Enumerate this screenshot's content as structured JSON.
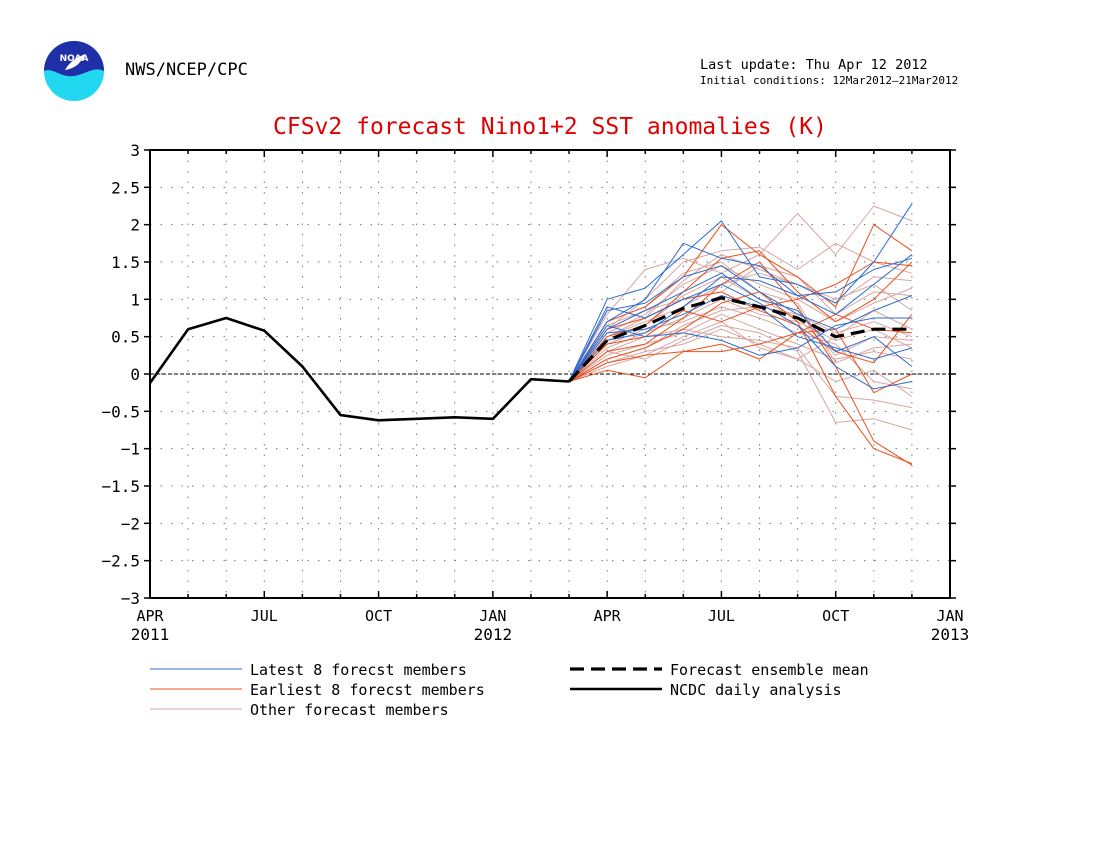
{
  "header": {
    "logo_text": "NOAA",
    "agency": "NWS/NCEP/CPC",
    "last_update": "Last update: Thu Apr 12 2012",
    "initial_conditions": "Initial conditions: 12Mar2012—21Mar2012"
  },
  "colors": {
    "title": "#e00000",
    "latest": "#2b6cd0",
    "earliest": "#e8501c",
    "other": "#d9a5a0",
    "mean": "#000000",
    "analysis": "#000000"
  },
  "chart_data": {
    "type": "line",
    "title": "CFSv2 forecast Nino1+2 SST anomalies (K)",
    "xlabel": "",
    "ylabel": "",
    "ylim": [
      -3,
      3
    ],
    "yticks": [
      3,
      2.5,
      2,
      1.5,
      1,
      0.5,
      0,
      -0.5,
      -1,
      -1.5,
      -2,
      -2.5,
      -3
    ],
    "ytick_labels": [
      "3",
      "2.5",
      "2",
      "1.5",
      "1",
      "0.5",
      "0",
      "−0.5",
      "−1",
      "−1.5",
      "−2",
      "−2.5",
      "−3"
    ],
    "xlim": [
      0,
      21
    ],
    "xticks": [
      {
        "x": 0,
        "label": "APR",
        "year": "2011"
      },
      {
        "x": 3,
        "label": "JUL",
        "year": ""
      },
      {
        "x": 6,
        "label": "OCT",
        "year": ""
      },
      {
        "x": 9,
        "label": "JAN",
        "year": "2012"
      },
      {
        "x": 12,
        "label": "APR",
        "year": ""
      },
      {
        "x": 15,
        "label": "JUL",
        "year": ""
      },
      {
        "x": 18,
        "label": "OCT",
        "year": ""
      },
      {
        "x": 21,
        "label": "JAN",
        "year": "2013"
      }
    ],
    "grid": true,
    "zero_line": true,
    "series": [
      {
        "name": "NCDC daily analysis",
        "kind": "analysis",
        "x": [
          0,
          1,
          2,
          3,
          4,
          5,
          6,
          7,
          8,
          9,
          10,
          11
        ],
        "values": [
          -0.12,
          0.6,
          0.75,
          0.58,
          0.1,
          -0.55,
          -0.62,
          -0.6,
          -0.58,
          -0.6,
          -0.07,
          -0.1
        ]
      },
      {
        "name": "Forecast ensemble mean",
        "kind": "mean",
        "x": [
          11,
          12,
          13,
          14,
          15,
          16,
          17,
          18,
          19,
          20
        ],
        "values": [
          -0.1,
          0.45,
          0.65,
          0.88,
          1.02,
          0.9,
          0.75,
          0.5,
          0.6,
          0.6
        ]
      },
      {
        "name": "Latest 8 forecst members",
        "kind": "latest",
        "x": [
          11,
          12,
          13,
          14,
          15,
          16,
          17,
          18,
          19,
          20
        ],
        "values": [
          -0.1,
          1.0,
          1.15,
          1.6,
          2.05,
          1.3,
          1.2,
          0.95,
          1.5,
          2.28
        ]
      },
      {
        "kind": "latest",
        "x": [
          11,
          12,
          13,
          14,
          15,
          16,
          17,
          18,
          19,
          20
        ],
        "values": [
          -0.1,
          0.85,
          0.95,
          1.3,
          1.45,
          1.1,
          0.8,
          0.6,
          0.85,
          1.05
        ]
      },
      {
        "kind": "latest",
        "x": [
          11,
          12,
          13,
          14,
          15,
          16,
          17,
          18,
          19,
          20
        ],
        "values": [
          -0.1,
          0.7,
          1.0,
          1.75,
          1.55,
          1.45,
          1.05,
          0.8,
          1.2,
          1.6
        ]
      },
      {
        "kind": "latest",
        "x": [
          11,
          12,
          13,
          14,
          15,
          16,
          17,
          18,
          19,
          20
        ],
        "values": [
          -0.1,
          0.6,
          0.85,
          1.1,
          1.35,
          1.0,
          0.85,
          0.3,
          0.5,
          0.1
        ]
      },
      {
        "kind": "latest",
        "x": [
          11,
          12,
          13,
          14,
          15,
          16,
          17,
          18,
          19,
          20
        ],
        "values": [
          -0.1,
          0.9,
          0.75,
          1.0,
          1.2,
          0.95,
          0.65,
          0.1,
          -0.2,
          -0.1
        ]
      },
      {
        "kind": "latest",
        "x": [
          11,
          12,
          13,
          14,
          15,
          16,
          17,
          18,
          19,
          20
        ],
        "values": [
          -0.1,
          0.55,
          0.6,
          0.8,
          1.05,
          0.9,
          0.5,
          0.35,
          0.2,
          0.35
        ]
      },
      {
        "kind": "latest",
        "x": [
          11,
          12,
          13,
          14,
          15,
          16,
          17,
          18,
          19,
          20
        ],
        "values": [
          -0.1,
          0.65,
          0.5,
          0.55,
          0.45,
          0.25,
          0.35,
          0.65,
          0.75,
          0.75
        ]
      },
      {
        "kind": "latest",
        "x": [
          11,
          12,
          13,
          14,
          15,
          16,
          17,
          18,
          19,
          20
        ],
        "values": [
          -0.1,
          0.45,
          0.55,
          0.9,
          1.3,
          1.25,
          1.05,
          1.1,
          1.4,
          1.55
        ]
      },
      {
        "name": "Earliest 8 forecst members",
        "kind": "earliest",
        "x": [
          11,
          12,
          13,
          14,
          15,
          16,
          17,
          18,
          19,
          20
        ],
        "values": [
          -0.1,
          0.7,
          0.9,
          1.3,
          2.0,
          1.6,
          1.3,
          0.9,
          2.0,
          1.65
        ]
      },
      {
        "kind": "earliest",
        "x": [
          11,
          12,
          13,
          14,
          15,
          16,
          17,
          18,
          19,
          20
        ],
        "values": [
          -0.1,
          0.5,
          0.65,
          1.1,
          1.55,
          1.65,
          1.1,
          0.7,
          1.0,
          1.5
        ]
      },
      {
        "kind": "earliest",
        "x": [
          11,
          12,
          13,
          14,
          15,
          16,
          17,
          18,
          19,
          20
        ],
        "values": [
          -0.1,
          0.3,
          0.4,
          0.75,
          1.2,
          1.5,
          0.9,
          0.1,
          -0.9,
          -1.22
        ]
      },
      {
        "kind": "earliest",
        "x": [
          11,
          12,
          13,
          14,
          15,
          16,
          17,
          18,
          19,
          20
        ],
        "values": [
          -0.1,
          0.2,
          0.35,
          0.6,
          0.95,
          1.1,
          0.7,
          -0.3,
          -1.0,
          -1.2
        ]
      },
      {
        "kind": "earliest",
        "x": [
          11,
          12,
          13,
          14,
          15,
          16,
          17,
          18,
          19,
          20
        ],
        "values": [
          -0.1,
          0.15,
          0.25,
          0.3,
          0.3,
          0.4,
          0.55,
          0.6,
          -0.25,
          0.0
        ]
      },
      {
        "kind": "earliest",
        "x": [
          11,
          12,
          13,
          14,
          15,
          16,
          17,
          18,
          19,
          20
        ],
        "values": [
          -0.1,
          0.4,
          0.5,
          0.85,
          0.7,
          0.9,
          1.0,
          1.2,
          1.5,
          1.45
        ]
      },
      {
        "kind": "earliest",
        "x": [
          11,
          12,
          13,
          14,
          15,
          16,
          17,
          18,
          19,
          20
        ],
        "values": [
          -0.1,
          0.05,
          -0.05,
          0.3,
          0.4,
          0.2,
          0.55,
          0.8,
          0.6,
          0.55
        ]
      },
      {
        "kind": "earliest",
        "x": [
          11,
          12,
          13,
          14,
          15,
          16,
          17,
          18,
          19,
          20
        ],
        "values": [
          -0.1,
          0.6,
          0.75,
          1.0,
          1.1,
          0.85,
          0.65,
          0.3,
          0.15,
          0.8
        ]
      },
      {
        "name": "Other forecast members",
        "kind": "other",
        "x": [
          11,
          12,
          13,
          14,
          15,
          16,
          17,
          18,
          19,
          20
        ],
        "values": [
          -0.1,
          0.8,
          1.4,
          1.55,
          1.35,
          1.6,
          2.15,
          1.6,
          2.25,
          2.05
        ]
      },
      {
        "kind": "other",
        "x": [
          11,
          12,
          13,
          14,
          15,
          16,
          17,
          18,
          19,
          20
        ],
        "values": [
          -0.1,
          0.6,
          1.0,
          1.5,
          1.65,
          1.7,
          1.4,
          1.75,
          1.5,
          1.35
        ]
      },
      {
        "kind": "other",
        "x": [
          11,
          12,
          13,
          14,
          15,
          16,
          17,
          18,
          19,
          20
        ],
        "values": [
          -0.1,
          0.5,
          0.7,
          0.9,
          1.2,
          1.35,
          1.2,
          1.0,
          1.2,
          0.85
        ]
      },
      {
        "kind": "other",
        "x": [
          11,
          12,
          13,
          14,
          15,
          16,
          17,
          18,
          19,
          20
        ],
        "values": [
          -0.1,
          0.35,
          0.55,
          0.75,
          1.0,
          0.8,
          0.7,
          0.45,
          0.6,
          0.35
        ]
      },
      {
        "kind": "other",
        "x": [
          11,
          12,
          13,
          14,
          15,
          16,
          17,
          18,
          19,
          20
        ],
        "values": [
          -0.1,
          0.25,
          0.4,
          0.55,
          0.8,
          0.6,
          0.4,
          0.2,
          0.3,
          0.2
        ]
      },
      {
        "kind": "other",
        "x": [
          11,
          12,
          13,
          14,
          15,
          16,
          17,
          18,
          19,
          20
        ],
        "values": [
          -0.1,
          0.15,
          0.3,
          0.4,
          0.6,
          0.4,
          0.2,
          -0.1,
          0.05,
          -0.3
        ]
      },
      {
        "kind": "other",
        "x": [
          11,
          12,
          13,
          14,
          15,
          16,
          17,
          18,
          19,
          20
        ],
        "values": [
          -0.1,
          0.3,
          0.2,
          0.45,
          0.65,
          0.55,
          0.3,
          -0.65,
          -0.6,
          -0.75
        ]
      },
      {
        "kind": "other",
        "x": [
          11,
          12,
          13,
          14,
          15,
          16,
          17,
          18,
          19,
          20
        ],
        "values": [
          -0.1,
          0.45,
          0.65,
          1.05,
          1.3,
          1.0,
          0.75,
          0.25,
          0.5,
          0.45
        ]
      },
      {
        "kind": "other",
        "x": [
          11,
          12,
          13,
          14,
          15,
          16,
          17,
          18,
          19,
          20
        ],
        "values": [
          -0.1,
          0.55,
          0.8,
          1.2,
          1.45,
          1.2,
          1.0,
          0.7,
          0.95,
          1.15
        ]
      },
      {
        "kind": "other",
        "x": [
          11,
          12,
          13,
          14,
          15,
          16,
          17,
          18,
          19,
          20
        ],
        "values": [
          -0.1,
          0.1,
          0.25,
          0.5,
          0.7,
          0.35,
          0.2,
          0.5,
          0.85,
          0.6
        ]
      },
      {
        "kind": "other",
        "x": [
          11,
          12,
          13,
          14,
          15,
          16,
          17,
          18,
          19,
          20
        ],
        "values": [
          -0.1,
          0.7,
          0.9,
          1.35,
          1.5,
          1.1,
          0.95,
          0.15,
          0.35,
          0.4
        ]
      },
      {
        "kind": "other",
        "x": [
          11,
          12,
          13,
          14,
          15,
          16,
          17,
          18,
          19,
          20
        ],
        "values": [
          -0.1,
          0.4,
          0.6,
          0.7,
          0.9,
          0.75,
          0.55,
          0.4,
          -0.1,
          -0.2
        ]
      },
      {
        "kind": "other",
        "x": [
          11,
          12,
          13,
          14,
          15,
          16,
          17,
          18,
          19,
          20
        ],
        "values": [
          -0.1,
          0.2,
          0.35,
          0.65,
          0.85,
          0.9,
          0.8,
          0.55,
          0.7,
          0.5
        ]
      },
      {
        "kind": "other",
        "x": [
          11,
          12,
          13,
          14,
          15,
          16,
          17,
          18,
          19,
          20
        ],
        "values": [
          -0.1,
          0.65,
          0.85,
          1.0,
          1.1,
          1.45,
          1.3,
          0.8,
          1.1,
          1.05
        ]
      },
      {
        "kind": "other",
        "x": [
          11,
          12,
          13,
          14,
          15,
          16,
          17,
          18,
          19,
          20
        ],
        "values": [
          -0.1,
          0.3,
          0.5,
          0.6,
          0.5,
          0.45,
          0.35,
          -0.3,
          -0.35,
          -0.45
        ]
      },
      {
        "kind": "other",
        "x": [
          11,
          12,
          13,
          14,
          15,
          16,
          17,
          18,
          19,
          20
        ],
        "values": [
          -0.1,
          0.5,
          0.75,
          1.25,
          1.6,
          1.4,
          1.2,
          0.95,
          1.3,
          1.25
        ]
      }
    ],
    "legend": [
      {
        "label": "Latest 8 forecst members",
        "kind": "latest",
        "col": 0,
        "row": 0
      },
      {
        "label": "Earliest 8 forecst members",
        "kind": "earliest",
        "col": 0,
        "row": 1
      },
      {
        "label": "Other forecast members",
        "kind": "other",
        "col": 0,
        "row": 2
      },
      {
        "label": "Forecast ensemble mean",
        "kind": "mean",
        "col": 1,
        "row": 0
      },
      {
        "label": "NCDC daily analysis",
        "kind": "analysis",
        "col": 1,
        "row": 1
      }
    ]
  }
}
